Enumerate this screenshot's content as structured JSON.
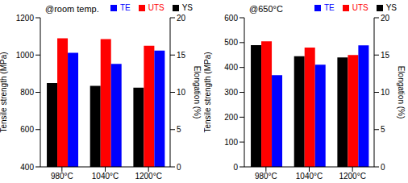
{
  "chart_data": [
    {
      "type": "bar",
      "annotation": "@room temp.",
      "categories": [
        "980°C",
        "1040°C",
        "1200°C"
      ],
      "series": [
        {
          "name": "YS",
          "color": "#000000",
          "values": [
            850,
            835,
            825
          ]
        },
        {
          "name": "UTS",
          "color": "#ff0000",
          "values": [
            1090,
            1085,
            1050
          ]
        },
        {
          "name": "TE",
          "color": "#0000ff",
          "values": [
            15.3,
            13.8,
            15.6
          ],
          "axis": "y2"
        }
      ],
      "y_label": "Tensile strength (MPa)",
      "y2_label": "Elongation (%)",
      "ylim": [
        400,
        1200
      ],
      "yticks": [
        400,
        600,
        800,
        1000,
        1200
      ],
      "y2lim": [
        0,
        20
      ],
      "y2ticks": [
        0,
        5,
        10,
        15,
        20
      ],
      "legend": "top right"
    },
    {
      "type": "bar",
      "annotation": "@650°C",
      "categories": [
        "980°C",
        "1040°C",
        "1200°C"
      ],
      "series": [
        {
          "name": "YS",
          "color": "#000000",
          "values": [
            490,
            445,
            440
          ]
        },
        {
          "name": "UTS",
          "color": "#ff0000",
          "values": [
            505,
            480,
            450
          ]
        },
        {
          "name": "TE",
          "color": "#0000ff",
          "values": [
            12.3,
            13.7,
            16.3
          ],
          "axis": "y2"
        }
      ],
      "y_label": "Tensile strength (MPa)",
      "y2_label": "Elongation (%)",
      "ylim": [
        0,
        600
      ],
      "yticks": [
        0,
        100,
        200,
        300,
        400,
        500,
        600
      ],
      "y2lim": [
        0,
        20
      ],
      "y2ticks": [
        0,
        5,
        10,
        15,
        20
      ],
      "legend": "top right"
    }
  ]
}
